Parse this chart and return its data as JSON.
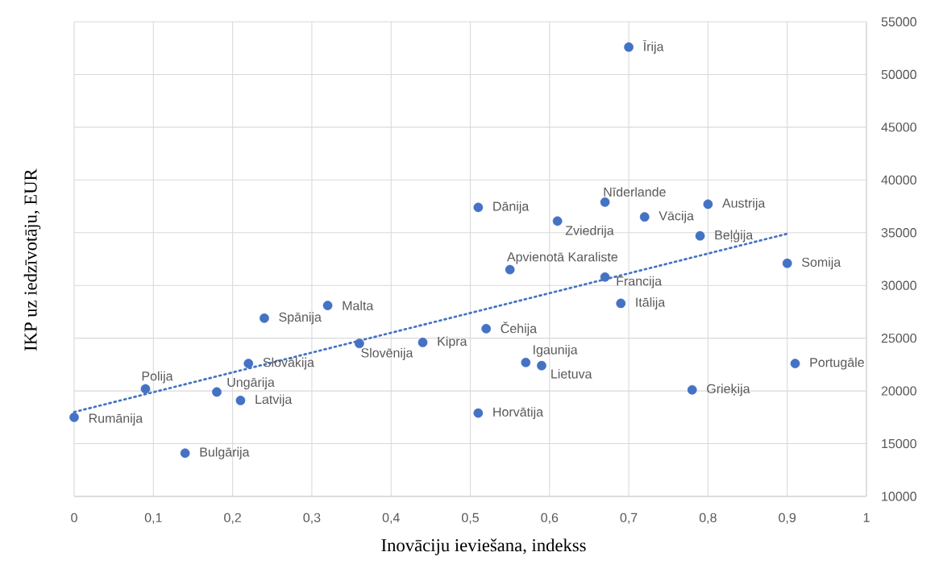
{
  "chart_data": {
    "type": "scatter",
    "xlabel": "Inovāciju ieviešana, indekss",
    "ylabel": "IKP uz iedzīvotāju, EUR",
    "xlim": [
      0,
      1
    ],
    "ylim": [
      10000,
      55000
    ],
    "xticks": [
      0,
      {
        "value": 0.1,
        "label": "0,1"
      },
      {
        "value": 0.2,
        "label": "0,2"
      },
      {
        "value": 0.3,
        "label": "0,3"
      },
      {
        "value": 0.4,
        "label": "0,4"
      },
      {
        "value": 0.5,
        "label": "0,5"
      },
      {
        "value": 0.6,
        "label": "0,6"
      },
      {
        "value": 0.7,
        "label": "0,7"
      },
      {
        "value": 0.8,
        "label": "0,8"
      },
      {
        "value": 0.9,
        "label": "0,9"
      },
      1
    ],
    "yticks": [
      10000,
      15000,
      20000,
      25000,
      30000,
      35000,
      40000,
      45000,
      50000,
      55000
    ],
    "grid": true,
    "series": [
      {
        "color": "#4472c4",
        "marker": "circle",
        "x": [
          0.7,
          0.67,
          0.8,
          0.51,
          0.72,
          0.61,
          0.79,
          0.9,
          0.55,
          0.67,
          0.69,
          0.32,
          0.24,
          0.52,
          0.36,
          0.44,
          0.22,
          0.57,
          0.59,
          0.91,
          0.09,
          0.18,
          0.78,
          0.21,
          0.0,
          0.51,
          0.14
        ],
        "values": [
          52600,
          37900,
          37700,
          37400,
          36500,
          36100,
          34700,
          32100,
          31500,
          30800,
          28300,
          28100,
          26900,
          25900,
          24500,
          24600,
          22600,
          22700,
          22400,
          22600,
          20200,
          19900,
          20100,
          19100,
          17500,
          17900,
          14100
        ]
      },
      {
        "type": "line",
        "color": "#4472c4",
        "marker": "none",
        "line_style": "dotted",
        "x": [
          0,
          0.9
        ],
        "values": [
          18000,
          34900
        ]
      }
    ],
    "annotations": [
      {
        "text": "Īrija",
        "x": 0.7,
        "y": 52600
      },
      {
        "text": "Nīderlande",
        "x": 0.67,
        "y": 37900
      },
      {
        "text": "Austrija",
        "x": 0.8,
        "y": 37700
      },
      {
        "text": "Dānija",
        "x": 0.51,
        "y": 37400
      },
      {
        "text": "Vācija",
        "x": 0.72,
        "y": 36500
      },
      {
        "text": "Zviedrija",
        "x": 0.61,
        "y": 36100
      },
      {
        "text": "Beļģija",
        "x": 0.79,
        "y": 34700
      },
      {
        "text": "Somija",
        "x": 0.9,
        "y": 32100
      },
      {
        "text": "Apvienotā Karaliste",
        "x": 0.55,
        "y": 31500
      },
      {
        "text": "Francija",
        "x": 0.67,
        "y": 30800
      },
      {
        "text": "Itālija",
        "x": 0.69,
        "y": 28300
      },
      {
        "text": "Malta",
        "x": 0.32,
        "y": 28100
      },
      {
        "text": "Spānija",
        "x": 0.24,
        "y": 26900
      },
      {
        "text": "Čehija",
        "x": 0.52,
        "y": 25900
      },
      {
        "text": "Slovēnija",
        "x": 0.36,
        "y": 24500
      },
      {
        "text": "Kipra",
        "x": 0.44,
        "y": 24600
      },
      {
        "text": "Slovākija",
        "x": 0.22,
        "y": 22600
      },
      {
        "text": "Igaunija",
        "x": 0.57,
        "y": 22700
      },
      {
        "text": "Lietuva",
        "x": 0.59,
        "y": 22400
      },
      {
        "text": "Portugāle",
        "x": 0.91,
        "y": 22600
      },
      {
        "text": "Polija",
        "x": 0.09,
        "y": 20200
      },
      {
        "text": "Ungārija",
        "x": 0.18,
        "y": 19900
      },
      {
        "text": "Grieķija",
        "x": 0.78,
        "y": 20100
      },
      {
        "text": "Latvija",
        "x": 0.21,
        "y": 19100
      },
      {
        "text": "Rumānija",
        "x": 0.0,
        "y": 17500
      },
      {
        "text": "Horvātija",
        "x": 0.51,
        "y": 17900
      },
      {
        "text": "Bulgārija",
        "x": 0.14,
        "y": 14100
      }
    ]
  }
}
